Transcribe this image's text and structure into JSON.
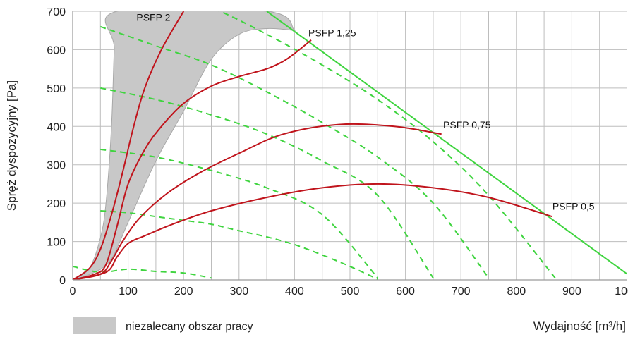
{
  "chart_data": {
    "type": "line",
    "title": "",
    "xlabel": "Wydajność [m³/h]",
    "ylabel": "Spręż dyspozycyjny [Pa]",
    "xlim": [
      0,
      1000
    ],
    "ylim": [
      0,
      700
    ],
    "xticks": [
      0,
      100,
      200,
      300,
      400,
      500,
      600,
      700,
      800,
      900,
      1000
    ],
    "yticks": [
      0,
      100,
      200,
      300,
      400,
      500,
      600,
      700
    ],
    "grid": true,
    "colors": {
      "fan_curve": "#c0141c",
      "system_curve": "#3fd43f",
      "psfp_limit": "#3fd43f",
      "shaded_area": "#c8c8c8",
      "grid": "#bdbdbd"
    },
    "legend": {
      "position": "bottom-left",
      "entries": [
        {
          "label": "niezalecany obszar pracy",
          "color": "#c8c8c8"
        }
      ]
    },
    "not_recommended_area": {
      "label": "niezalecany obszar pracy",
      "outer_boundary": [
        [
          0,
          0
        ],
        [
          30,
          30
        ],
        [
          50,
          110
        ],
        [
          60,
          200
        ],
        [
          70,
          400
        ],
        [
          75,
          600
        ],
        [
          80,
          700
        ],
        [
          350,
          700
        ],
        [
          400,
          650
        ]
      ],
      "inner_boundary": [
        [
          400,
          650
        ],
        [
          350,
          655
        ],
        [
          300,
          640
        ],
        [
          250,
          575
        ],
        [
          200,
          440
        ],
        [
          150,
          310
        ],
        [
          100,
          150
        ],
        [
          70,
          55
        ],
        [
          40,
          20
        ],
        [
          0,
          0
        ]
      ]
    },
    "psfp_limit_line": [
      [
        350,
        700
      ],
      [
        1000,
        15
      ]
    ],
    "series": [
      {
        "name": "PSFP 2",
        "label_x": 115,
        "label_y": 675,
        "x": [
          0,
          30,
          50,
          70,
          90,
          110,
          130,
          160,
          200
        ],
        "y": [
          0,
          30,
          80,
          170,
          280,
          400,
          500,
          600,
          700
        ]
      },
      {
        "name": "PSFP 1,25",
        "label_x": 425,
        "label_y": 635,
        "x": [
          0,
          40,
          60,
          80,
          100,
          130,
          160,
          200,
          250,
          300,
          350,
          380,
          400,
          430
        ],
        "y": [
          0,
          15,
          40,
          140,
          250,
          340,
          400,
          460,
          505,
          530,
          550,
          570,
          590,
          625
        ]
      },
      {
        "name": "PSFP 0,75",
        "label_x": 668,
        "label_y": 395,
        "x": [
          0,
          50,
          70,
          90,
          120,
          170,
          230,
          300,
          380,
          480,
          580,
          665
        ],
        "y": [
          0,
          15,
          50,
          100,
          160,
          225,
          280,
          330,
          380,
          405,
          400,
          380
        ]
      },
      {
        "name": "PSFP 0,5",
        "label_x": 865,
        "label_y": 183,
        "x": [
          0,
          60,
          80,
          100,
          130,
          180,
          250,
          350,
          450,
          550,
          650,
          750,
          865
        ],
        "y": [
          0,
          20,
          60,
          95,
          115,
          145,
          180,
          215,
          240,
          250,
          240,
          215,
          165
        ]
      }
    ],
    "system_curves": [
      {
        "x": [
          0,
          50,
          100,
          150,
          200,
          250
        ],
        "y": [
          35,
          20,
          28,
          22,
          18,
          5
        ]
      },
      {
        "x": [
          50,
          100,
          150,
          200,
          250,
          300,
          350,
          400,
          450,
          500,
          550
        ],
        "y": [
          180,
          175,
          165,
          155,
          145,
          128,
          112,
          92,
          65,
          35,
          2
        ]
      },
      {
        "x": [
          50,
          150,
          250,
          350,
          450,
          550
        ],
        "y": [
          340,
          320,
          285,
          240,
          170,
          5
        ]
      },
      {
        "x": [
          50,
          150,
          250,
          350,
          450,
          550,
          650
        ],
        "y": [
          500,
          470,
          430,
          380,
          310,
          220,
          5
        ]
      },
      {
        "x": [
          50,
          150,
          250,
          350,
          450,
          550,
          650,
          750
        ],
        "y": [
          660,
          610,
          560,
          490,
          410,
          320,
          200,
          5
        ]
      },
      {
        "x": [
          50,
          150,
          250,
          350,
          450,
          550,
          650,
          750,
          870
        ],
        "y": [
          790,
          760,
          710,
          640,
          560,
          470,
          360,
          220,
          5
        ]
      }
    ]
  }
}
